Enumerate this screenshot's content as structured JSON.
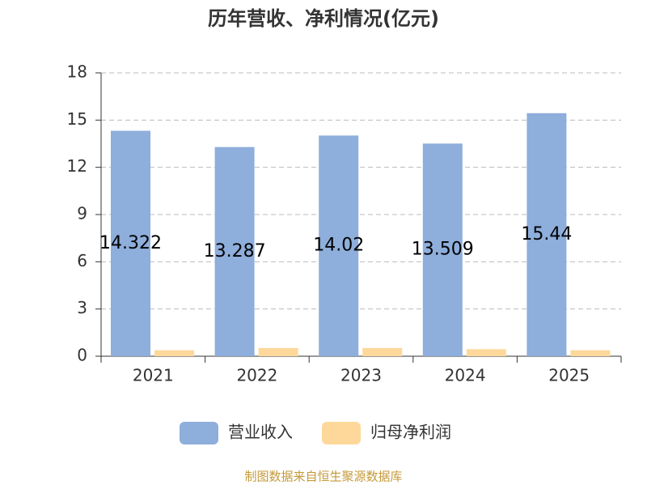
{
  "chart_data": {
    "type": "bar",
    "title": "历年营收、净利情况(亿元)",
    "categories": [
      "2021",
      "2022",
      "2023",
      "2024",
      "2025"
    ],
    "series": [
      {
        "name": "营业收入",
        "color": "#8eaedb",
        "values": [
          14.322,
          13.287,
          14.02,
          13.509,
          15.44
        ],
        "show_labels": true
      },
      {
        "name": "归母净利润",
        "color": "#fdd89a",
        "values": [
          0.38,
          0.52,
          0.52,
          0.45,
          0.38
        ],
        "show_labels": false
      }
    ],
    "ylim": [
      0,
      18
    ],
    "yticks": [
      0,
      3,
      6,
      9,
      12,
      15,
      18
    ],
    "grid": true,
    "legend": "bottom",
    "source": "制图数据来自恒生聚源数据库"
  }
}
